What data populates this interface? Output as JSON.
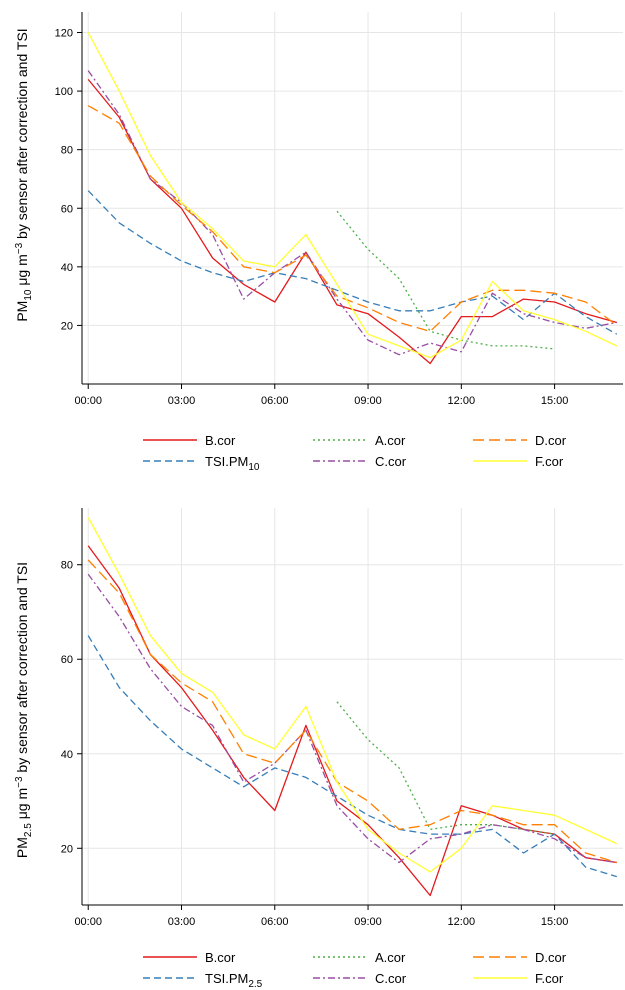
{
  "series_styles": {
    "B.cor": {
      "color": "#e41a1c",
      "dash": "solid"
    },
    "TSI": {
      "color": "#377eb8",
      "dash": "dashed"
    },
    "A.cor": {
      "color": "#4daf4a",
      "dash": "dotted"
    },
    "C.cor": {
      "color": "#984ea3",
      "dash": "dashdot"
    },
    "D.cor": {
      "color": "#ff7f00",
      "dash": "longdash"
    },
    "F.cor": {
      "color": "#ffff33",
      "dash": "solid"
    }
  },
  "chart_data": [
    {
      "type": "line",
      "ylabel": "PM10 μg m−3 by sensor after correction and TSI",
      "ylabel_parts": {
        "pre": "PM",
        "sub": "10",
        "mid": " μg m",
        "sup": "−3",
        "post": " by sensor after correction and TSI"
      },
      "xlabel": "",
      "x_ticks": [
        "00:00",
        "03:00",
        "06:00",
        "09:00",
        "12:00",
        "15:00"
      ],
      "y_ticks": [
        20,
        40,
        60,
        80,
        100,
        120
      ],
      "xlim": [
        -0.2,
        17.2
      ],
      "ylim": [
        0,
        127
      ],
      "grid": true,
      "legend_position": "bottom",
      "legend": [
        {
          "series": "B.cor",
          "label": "B.cor"
        },
        {
          "series": "A.cor",
          "label": "A.cor"
        },
        {
          "series": "D.cor",
          "label": "D.cor"
        },
        {
          "series": "TSI",
          "label": "TSI.PM",
          "label_sub": "10"
        },
        {
          "series": "C.cor",
          "label": "C.cor"
        },
        {
          "series": "F.cor",
          "label": "F.cor"
        }
      ],
      "series": [
        {
          "name": "B.cor",
          "x": [
            0,
            1,
            2,
            3,
            4,
            5,
            6,
            7,
            8,
            9,
            10,
            11,
            12,
            13,
            14,
            15,
            16,
            17
          ],
          "values": [
            104,
            91,
            70,
            60,
            43,
            34,
            28,
            45,
            27,
            24,
            16,
            7,
            23,
            23,
            29,
            28,
            24,
            21
          ]
        },
        {
          "name": "TSI.PM10",
          "x": [
            0,
            1,
            2,
            3,
            4,
            5,
            6,
            7,
            8,
            9,
            10,
            11,
            12,
            13,
            14,
            15,
            16,
            17
          ],
          "values": [
            66,
            55,
            48,
            42,
            38,
            35,
            38,
            36,
            32,
            28,
            25,
            25,
            28,
            30,
            22,
            31,
            23,
            17
          ]
        },
        {
          "name": "A.cor",
          "x": [
            8,
            9,
            10,
            11,
            12,
            13,
            14,
            15
          ],
          "values": [
            59,
            46,
            36,
            18,
            15,
            13,
            13,
            12
          ]
        },
        {
          "name": "C.cor",
          "x": [
            0,
            1,
            2,
            3,
            4,
            5,
            6,
            7,
            8,
            9,
            10,
            11,
            12,
            13,
            14,
            15,
            16,
            17
          ],
          "values": [
            107,
            92,
            70,
            62,
            51,
            29,
            38,
            45,
            29,
            15,
            10,
            14,
            11,
            31,
            24,
            21,
            19,
            21
          ]
        },
        {
          "name": "D.cor",
          "x": [
            0,
            1,
            2,
            3,
            4,
            5,
            6,
            7,
            8,
            9,
            10,
            11,
            12,
            13,
            14,
            15,
            16,
            17
          ],
          "values": [
            95,
            89,
            71,
            61,
            52,
            40,
            38,
            44,
            30,
            26,
            21,
            18,
            28,
            32,
            32,
            31,
            28,
            20
          ]
        },
        {
          "name": "F.cor",
          "x": [
            0,
            1,
            2,
            3,
            4,
            5,
            6,
            7,
            8,
            9,
            10,
            11,
            12,
            13,
            14,
            15,
            16,
            17
          ],
          "values": [
            120,
            100,
            78,
            62,
            53,
            42,
            40,
            51,
            34,
            17,
            13,
            9,
            15,
            35,
            25,
            22,
            18,
            13
          ]
        }
      ]
    },
    {
      "type": "line",
      "ylabel": "PM2.5 μg m−3 by sensor after correction and TSI",
      "ylabel_parts": {
        "pre": "PM",
        "sub": "2.5",
        "mid": " μg m",
        "sup": "−3",
        "post": " by sensor after correction and TSI"
      },
      "xlabel": "",
      "x_ticks": [
        "00:00",
        "03:00",
        "06:00",
        "09:00",
        "12:00",
        "15:00"
      ],
      "y_ticks": [
        20,
        40,
        60,
        80
      ],
      "xlim": [
        -0.2,
        17.2
      ],
      "ylim": [
        8,
        92
      ],
      "grid": true,
      "legend_position": "bottom",
      "legend": [
        {
          "series": "B.cor",
          "label": "B.cor"
        },
        {
          "series": "A.cor",
          "label": "A.cor"
        },
        {
          "series": "D.cor",
          "label": "D.cor"
        },
        {
          "series": "TSI",
          "label": "TSI.PM",
          "label_sub": "2.5"
        },
        {
          "series": "C.cor",
          "label": "C.cor"
        },
        {
          "series": "F.cor",
          "label": "F.cor"
        }
      ],
      "series": [
        {
          "name": "B.cor",
          "x": [
            0,
            1,
            2,
            3,
            4,
            5,
            6,
            7,
            8,
            9,
            10,
            11,
            12,
            13,
            14,
            15,
            16,
            17
          ],
          "values": [
            84,
            75,
            61,
            54,
            45,
            35,
            28,
            46,
            30,
            25,
            18,
            10,
            29,
            27,
            24,
            23,
            18,
            17
          ]
        },
        {
          "name": "TSI.PM2.5",
          "x": [
            0,
            1,
            2,
            3,
            4,
            5,
            6,
            7,
            8,
            9,
            10,
            11,
            12,
            13,
            14,
            15,
            16,
            17
          ],
          "values": [
            65,
            54,
            47,
            41,
            37,
            33,
            37,
            35,
            31,
            27,
            24,
            23,
            23,
            24,
            19,
            23,
            16,
            14
          ]
        },
        {
          "name": "A.cor",
          "x": [
            8,
            9,
            10,
            11,
            12,
            13,
            14,
            15
          ],
          "values": [
            51,
            43,
            37,
            24,
            25,
            25,
            24,
            23
          ]
        },
        {
          "name": "C.cor",
          "x": [
            0,
            1,
            2,
            3,
            4,
            5,
            6,
            7,
            8,
            9,
            10,
            11,
            12,
            13,
            14,
            15,
            16,
            17
          ],
          "values": [
            78,
            69,
            58,
            50,
            46,
            34,
            38,
            45,
            29,
            22,
            17,
            22,
            23,
            25,
            24,
            22,
            18,
            17
          ]
        },
        {
          "name": "D.cor",
          "x": [
            0,
            1,
            2,
            3,
            4,
            5,
            6,
            7,
            8,
            9,
            10,
            11,
            12,
            13,
            14,
            15,
            16,
            17
          ],
          "values": [
            81,
            74,
            61,
            55,
            51,
            40,
            38,
            45,
            34,
            30,
            24,
            25,
            28,
            27,
            25,
            25,
            19,
            17
          ]
        },
        {
          "name": "F.cor",
          "x": [
            0,
            1,
            2,
            3,
            4,
            5,
            6,
            7,
            8,
            9,
            10,
            11,
            12,
            13,
            14,
            15,
            16,
            17
          ],
          "values": [
            90,
            78,
            65,
            57,
            53,
            44,
            41,
            50,
            34,
            24,
            19,
            15,
            20,
            29,
            28,
            27,
            24,
            21
          ]
        }
      ]
    }
  ]
}
